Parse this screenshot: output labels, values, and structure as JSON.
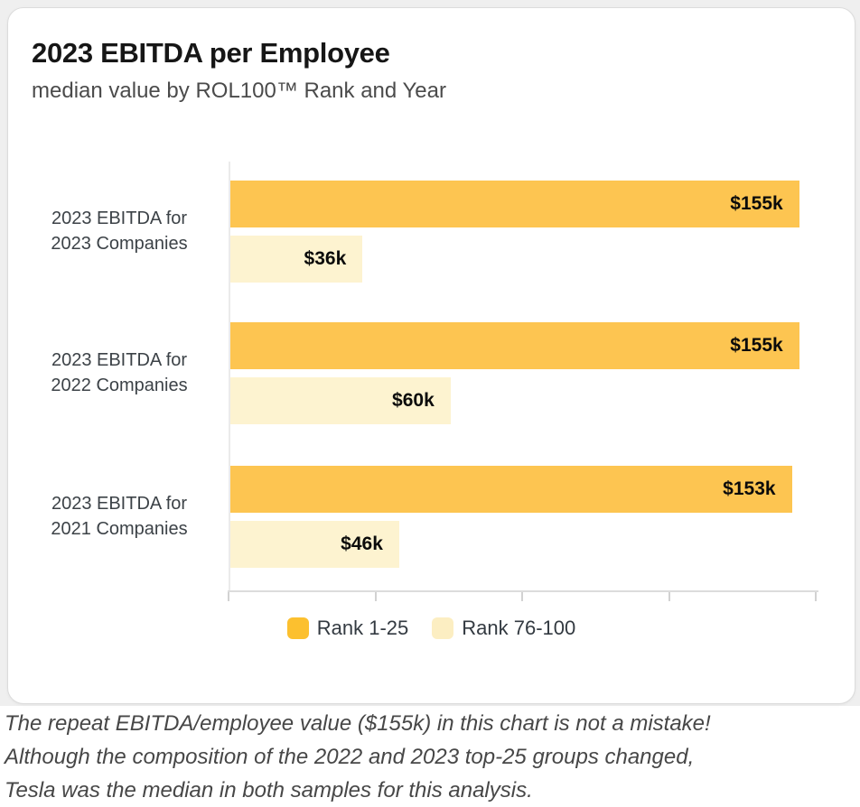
{
  "card": {
    "title": "2023 EBITDA per Employee",
    "subtitle": "median value by ROL100™ Rank and Year"
  },
  "chart_data": {
    "type": "bar",
    "orientation": "horizontal",
    "title": "2023 EBITDA per Employee",
    "subtitle": "median value by ROL100™ Rank and Year",
    "categories": [
      {
        "line1": "2023 EBITDA for",
        "line2": "2023 Companies"
      },
      {
        "line1": "2023 EBITDA for",
        "line2": "2022 Companies"
      },
      {
        "line1": "2023 EBITDA for",
        "line2": "2021 Companies"
      }
    ],
    "series": [
      {
        "name": "Rank 1-25",
        "color": "#fdc551",
        "values": [
          155,
          155,
          153
        ],
        "value_labels": [
          "$155k",
          "$155k",
          "$153k"
        ]
      },
      {
        "name": "Rank 76-100",
        "color": "#fdf3d0",
        "values": [
          36,
          60,
          46
        ],
        "value_labels": [
          "$36k",
          "$60k",
          "$46k"
        ]
      }
    ],
    "xlabel": "",
    "ylabel": "",
    "xlim": [
      0,
      160
    ],
    "x_ticks": [
      0,
      40,
      80,
      120,
      160
    ],
    "x_tick_labels_visible": false,
    "grid": false,
    "value_labels_position": "inside-end",
    "legend_position": "bottom"
  },
  "legend": {
    "items": [
      {
        "label": "Rank 1-25",
        "color": "#fcc02f"
      },
      {
        "label": "Rank 76-100",
        "color": "#fceec2"
      }
    ]
  },
  "footnote": {
    "lines": [
      "The repeat EBITDA/employee value ($155k) in this chart is not a mistake!",
      "Although the composition of the 2022 and 2023 top-25 groups changed,",
      "Tesla was the median in both samples for this analysis."
    ]
  }
}
